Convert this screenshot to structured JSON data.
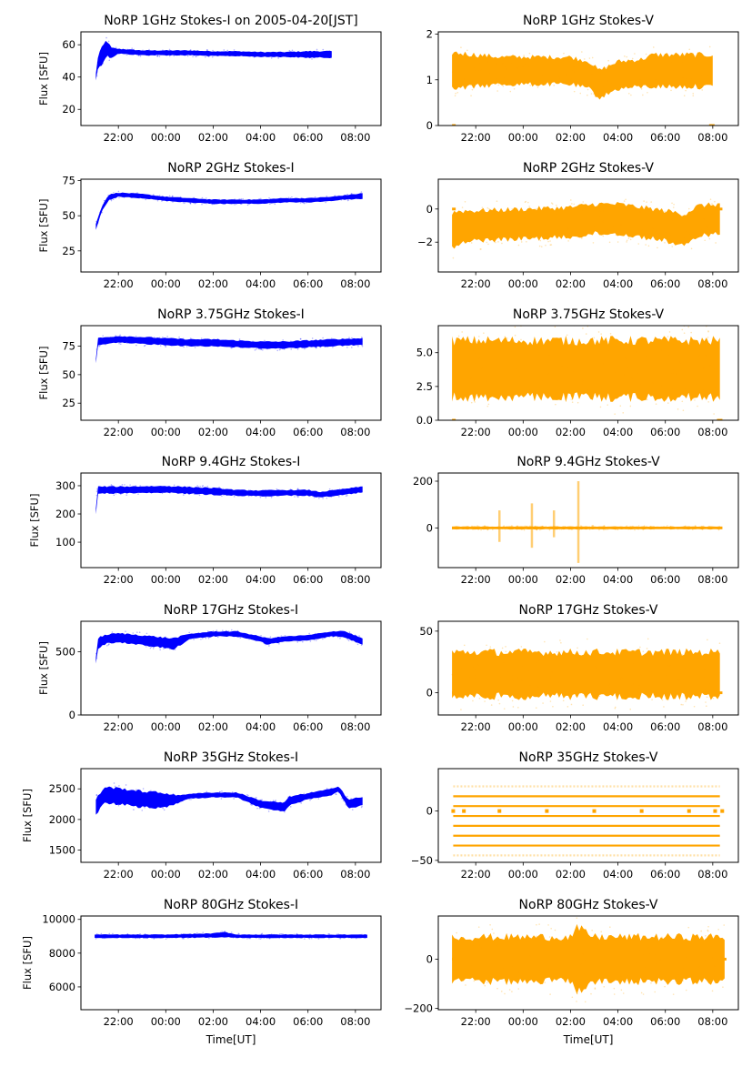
{
  "chart_data": [
    {
      "type": "scatter",
      "title": "NoRP 1GHz Stokes-I on 2005-04-20[JST]",
      "ylabel": "Flux [SFU]",
      "xlabel": "",
      "ylim": [
        10,
        68
      ],
      "yticks": [
        20,
        40,
        60
      ],
      "color": "#0000ff",
      "series": [
        {
          "name": "Stokes-I",
          "x_hours": [
            -0.95,
            -0.85,
            -0.7,
            -0.5,
            -0.3,
            0,
            1,
            2,
            3,
            4,
            5,
            6,
            7,
            8,
            9
          ],
          "y": [
            40,
            50,
            53,
            58,
            55,
            56,
            55,
            55,
            55,
            54.5,
            54.5,
            54,
            54,
            54,
            54
          ],
          "spread": [
            2,
            4,
            5,
            5,
            3,
            1.5,
            1.5,
            1.5,
            1.5,
            1.5,
            1.5,
            1.5,
            1.5,
            2,
            2
          ]
        }
      ],
      "x_end_hours": 10.0
    },
    {
      "type": "scatter",
      "title": "NoRP 1GHz Stokes-V",
      "ylabel": "",
      "xlabel": "",
      "ylim": [
        0,
        2.05
      ],
      "yticks": [
        0,
        1,
        2
      ],
      "color": "#ffa500",
      "series": [
        {
          "name": "Stokes-V",
          "x_hours": [
            -1,
            0,
            1,
            2,
            3,
            4,
            4.8,
            5.2,
            6,
            7,
            7.5,
            8,
            9,
            10
          ],
          "y": [
            1.2,
            1.2,
            1.2,
            1.2,
            1.2,
            1.2,
            1.1,
            0.9,
            1.1,
            1.15,
            1.2,
            1.2,
            1.2,
            1.2
          ],
          "spread": [
            0.4,
            0.35,
            0.3,
            0.3,
            0.3,
            0.3,
            0.3,
            0.3,
            0.3,
            0.3,
            0.35,
            0.35,
            0.35,
            0.35
          ]
        }
      ],
      "x_end_hours": 10.0
    },
    {
      "type": "scatter",
      "title": "NoRP 2GHz Stokes-I",
      "ylabel": "Flux [SFU]",
      "xlabel": "",
      "ylim": [
        10,
        76
      ],
      "yticks": [
        25,
        50,
        75
      ],
      "color": "#0000ff",
      "series": [
        {
          "name": "Stokes-I",
          "x_hours": [
            -0.95,
            -0.7,
            -0.4,
            0,
            1,
            2,
            3,
            4,
            5,
            6,
            7,
            8,
            9,
            9.5,
            10.3
          ],
          "y": [
            42,
            55,
            63,
            65,
            64,
            62,
            61,
            60,
            60,
            60,
            61,
            61,
            62,
            63,
            64
          ],
          "spread": [
            2,
            2,
            2,
            1.5,
            1.5,
            1.5,
            1.5,
            1.5,
            1.5,
            1.5,
            1.5,
            1.5,
            1.5,
            1.5,
            2
          ]
        }
      ],
      "x_end_hours": 10.33
    },
    {
      "type": "scatter",
      "title": "NoRP 2GHz Stokes-V",
      "ylabel": "",
      "xlabel": "",
      "ylim": [
        -3.8,
        1.8
      ],
      "yticks": [
        -2,
        0
      ],
      "color": "#ffa500",
      "series": [
        {
          "name": "Stokes-V",
          "x_hours": [
            -1,
            -0.6,
            0,
            2,
            4,
            5,
            6,
            7,
            8,
            8.8,
            9.4,
            10.3
          ],
          "y": [
            -1.3,
            -1.1,
            -1,
            -0.9,
            -0.8,
            -0.6,
            -0.6,
            -0.8,
            -1,
            -1.3,
            -0.7,
            -0.6
          ],
          "spread": [
            1.1,
            1,
            0.9,
            0.9,
            0.9,
            0.9,
            0.9,
            0.9,
            0.9,
            1,
            0.9,
            0.9
          ]
        }
      ],
      "x_end_hours": 10.33
    },
    {
      "type": "scatter",
      "title": "NoRP 3.75GHz Stokes-I",
      "ylabel": "Flux [SFU]",
      "xlabel": "",
      "ylim": [
        10,
        93
      ],
      "yticks": [
        25,
        50,
        75
      ],
      "color": "#0000ff",
      "series": [
        {
          "name": "Stokes-I",
          "x_hours": [
            -0.95,
            -0.9,
            0,
            1,
            2,
            3,
            4,
            5,
            6,
            7,
            8,
            9,
            10.3
          ],
          "y": [
            62,
            79,
            81,
            80,
            79,
            78,
            78,
            77,
            76,
            76,
            77,
            78,
            79
          ],
          "spread": [
            2,
            3,
            3,
            3,
            3,
            3,
            3,
            3,
            3,
            3,
            3,
            3,
            3
          ]
        }
      ],
      "x_end_hours": 10.33
    },
    {
      "type": "scatter",
      "title": "NoRP 3.75GHz Stokes-V",
      "ylabel": "",
      "xlabel": "",
      "ylim": [
        0,
        7
      ],
      "yticks": [
        0.0,
        2.5,
        5.0
      ],
      "ytick_labels": [
        "0.0",
        "2.5",
        "5.0"
      ],
      "color": "#ffa500",
      "series": [
        {
          "name": "Stokes-V",
          "x_hours": [
            -1,
            0,
            2,
            4,
            5,
            6,
            8,
            10.3
          ],
          "y": [
            3.8,
            3.8,
            3.8,
            3.8,
            3.8,
            3.8,
            3.8,
            3.8
          ],
          "spread": [
            2.1,
            2.1,
            2.1,
            2.1,
            2.1,
            2.1,
            2.1,
            2.1
          ]
        }
      ],
      "x_end_hours": 10.33
    },
    {
      "type": "scatter",
      "title": "NoRP 9.4GHz Stokes-I",
      "ylabel": "Flux [SFU]",
      "xlabel": "",
      "ylim": [
        10,
        345
      ],
      "yticks": [
        100,
        200,
        300
      ],
      "color": "#0000ff",
      "series": [
        {
          "name": "Stokes-I",
          "x_hours": [
            -0.95,
            -0.9,
            0,
            2,
            4,
            5,
            6,
            7,
            8,
            8.5,
            9,
            10.3
          ],
          "y": [
            210,
            285,
            285,
            287,
            280,
            275,
            273,
            275,
            275,
            268,
            273,
            287
          ],
          "spread": [
            10,
            12,
            12,
            12,
            12,
            10,
            10,
            10,
            10,
            10,
            10,
            10
          ]
        }
      ],
      "x_end_hours": 10.33
    },
    {
      "type": "scatter",
      "title": "NoRP 9.4GHz Stokes-V",
      "ylabel": "",
      "xlabel": "",
      "ylim": [
        -170,
        235
      ],
      "yticks": [
        0,
        200
      ],
      "color": "#ffa500",
      "series": [
        {
          "name": "Stokes-V",
          "x_hours": [
            -1,
            0,
            2,
            4,
            6,
            8,
            10.3
          ],
          "y": [
            0,
            0,
            0,
            0,
            0,
            0,
            0
          ],
          "spread": [
            6,
            6,
            6,
            6,
            6,
            6,
            6
          ]
        }
      ],
      "bursts": [
        {
          "x_hours": 1.0,
          "min": -60,
          "max": 75
        },
        {
          "x_hours": 2.37,
          "min": -85,
          "max": 105
        },
        {
          "x_hours": 3.3,
          "min": -40,
          "max": 75
        },
        {
          "x_hours": 4.33,
          "min": -150,
          "max": 200
        }
      ],
      "x_end_hours": 10.33
    },
    {
      "type": "scatter",
      "title": "NoRP 17GHz Stokes-I",
      "ylabel": "Flux [SFU]",
      "xlabel": "",
      "ylim": [
        0,
        740
      ],
      "yticks": [
        0,
        500
      ],
      "color": "#0000ff",
      "series": [
        {
          "name": "Stokes-I",
          "x_hours": [
            -0.95,
            -0.85,
            -0.5,
            0,
            1,
            2,
            2.3,
            3,
            4,
            5,
            6,
            6.3,
            7,
            8,
            9,
            9.5,
            10.3
          ],
          "y": [
            430,
            570,
            600,
            610,
            590,
            570,
            560,
            620,
            640,
            640,
            600,
            580,
            600,
            610,
            640,
            640,
            580
          ],
          "spread": [
            25,
            40,
            35,
            35,
            40,
            40,
            45,
            20,
            20,
            20,
            20,
            25,
            20,
            20,
            20,
            25,
            25
          ]
        }
      ],
      "x_end_hours": 10.33
    },
    {
      "type": "scatter",
      "title": "NoRP 17GHz Stokes-V",
      "ylabel": "",
      "xlabel": "",
      "ylim": [
        -18,
        58
      ],
      "yticks": [
        0,
        50
      ],
      "color": "#ffa500",
      "series": [
        {
          "name": "Stokes-V",
          "x_hours": [
            -1,
            0,
            2,
            4,
            6,
            8,
            10.3
          ],
          "y": [
            15,
            15,
            15,
            15,
            15,
            15,
            15
          ],
          "spread": [
            18,
            18,
            18,
            18,
            18,
            18,
            18
          ]
        }
      ],
      "x_end_hours": 10.33
    },
    {
      "type": "scatter",
      "title": "NoRP 35GHz Stokes-I",
      "ylabel": "Flux [SFU]",
      "xlabel": "",
      "ylim": [
        1300,
        2830
      ],
      "yticks": [
        1500,
        2000,
        2500
      ],
      "color": "#0000ff",
      "series": [
        {
          "name": "Stokes-I",
          "x_hours": [
            -0.95,
            -0.6,
            0,
            1,
            2,
            2.5,
            3,
            4,
            5,
            6,
            7,
            7.2,
            8,
            9,
            9.3,
            9.7,
            10.3
          ],
          "y": [
            2200,
            2400,
            2380,
            2330,
            2310,
            2330,
            2380,
            2400,
            2400,
            2250,
            2200,
            2300,
            2380,
            2450,
            2500,
            2250,
            2300
          ],
          "spread": [
            120,
            130,
            130,
            130,
            120,
            60,
            40,
            40,
            40,
            60,
            70,
            70,
            50,
            50,
            50,
            70,
            70
          ]
        }
      ],
      "x_end_hours": 10.33
    },
    {
      "type": "scatter",
      "title": "NoRP 35GHz Stokes-V",
      "ylabel": "",
      "xlabel": "",
      "ylim": [
        -52,
        43
      ],
      "yticks": [
        -50,
        0
      ],
      "color": "#ffa500",
      "series": [
        {
          "name": "Stokes-V",
          "levels": [
            25,
            15,
            5,
            -5,
            -15,
            -25,
            -35,
            -45
          ]
        }
      ],
      "x_end_hours": 10.33
    },
    {
      "type": "scatter",
      "title": "NoRP 80GHz Stokes-I",
      "ylabel": "Flux [SFU]",
      "xlabel": "Time[UT]",
      "ylim": [
        4650,
        10200
      ],
      "yticks": [
        6000,
        8000,
        10000
      ],
      "color": "#0000ff",
      "series": [
        {
          "name": "Stokes-I",
          "x_hours": [
            -1,
            0,
            2,
            4,
            4.5,
            5,
            6,
            8,
            10.5
          ],
          "y": [
            9000,
            9000,
            9000,
            9050,
            9100,
            9000,
            9000,
            9000,
            9000
          ],
          "spread": [
            100,
            100,
            100,
            120,
            150,
            100,
            100,
            100,
            100
          ]
        }
      ],
      "x_end_hours": 10.5
    },
    {
      "type": "scatter",
      "title": "NoRP 80GHz Stokes-V",
      "ylabel": "",
      "xlabel": "Time[UT]",
      "ylim": [
        -205,
        175
      ],
      "yticks": [
        -200,
        0
      ],
      "color": "#ffa500",
      "series": [
        {
          "name": "Stokes-V",
          "x_hours": [
            -1,
            0,
            2,
            4,
            4.3,
            5,
            6,
            8,
            10.5
          ],
          "y": [
            0,
            0,
            0,
            0,
            0,
            0,
            0,
            0,
            0
          ],
          "spread": [
            90,
            90,
            90,
            90,
            125,
            90,
            90,
            90,
            90
          ]
        }
      ],
      "x_end_hours": 10.5
    }
  ],
  "shared_x": {
    "xlim_hours": [
      -1.58,
      11.08
    ],
    "xticks_hours": [
      0,
      2,
      4,
      6,
      8,
      10
    ],
    "xtick_labels": [
      "22:00",
      "00:00",
      "02:00",
      "04:00",
      "06:00",
      "08:00"
    ],
    "origin_label": "22:00"
  }
}
